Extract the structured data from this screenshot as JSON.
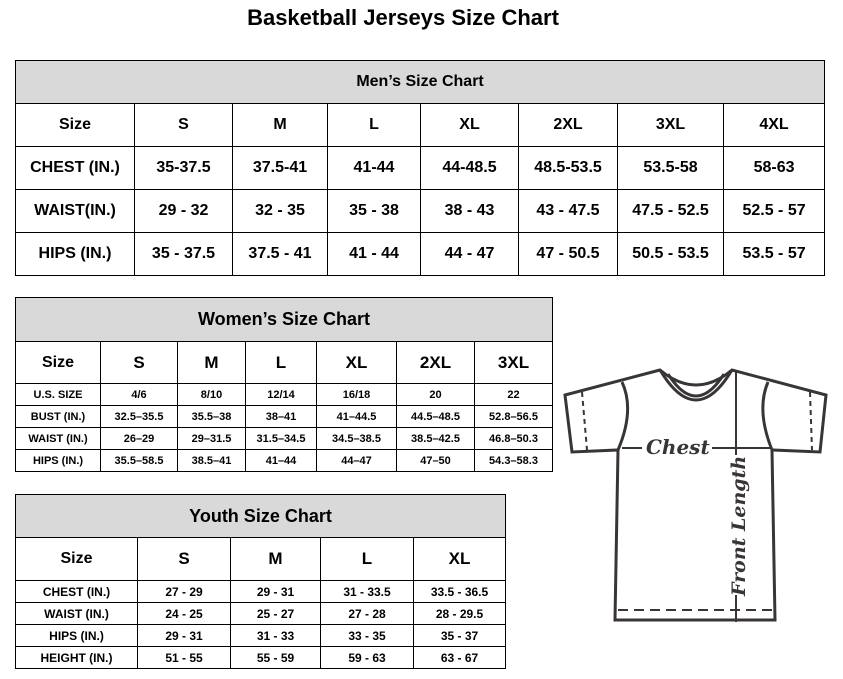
{
  "title": "Basketball Jerseys Size Chart",
  "men": {
    "title": "Men’s Size Chart",
    "header": [
      "Size",
      "S",
      "M",
      "L",
      "XL",
      "2XL",
      "3XL",
      "4XL"
    ],
    "rows": [
      [
        "CHEST (IN.)",
        "35-37.5",
        "37.5-41",
        "41-44",
        "44-48.5",
        "48.5-53.5",
        "53.5-58",
        "58-63"
      ],
      [
        "WAIST(IN.)",
        "29 - 32",
        "32 - 35",
        "35 - 38",
        "38 - 43",
        "43 - 47.5",
        "47.5 - 52.5",
        "52.5 - 57"
      ],
      [
        "HIPS (IN.)",
        "35 - 37.5",
        "37.5 - 41",
        "41 - 44",
        "44 - 47",
        "47 - 50.5",
        "50.5 - 53.5",
        "53.5 - 57"
      ]
    ]
  },
  "women": {
    "title": "Women’s Size Chart",
    "header": [
      "Size",
      "S",
      "M",
      "L",
      "XL",
      "2XL",
      "3XL"
    ],
    "rows": [
      [
        "U.S. SIZE",
        "4/6",
        "8/10",
        "12/14",
        "16/18",
        "20",
        "22"
      ],
      [
        "BUST (IN.)",
        "32.5–35.5",
        "35.5–38",
        "38–41",
        "41–44.5",
        "44.5–48.5",
        "52.8–56.5"
      ],
      [
        "WAIST (IN.)",
        "26–29",
        "29–31.5",
        "31.5–34.5",
        "34.5–38.5",
        "38.5–42.5",
        "46.8–50.3"
      ],
      [
        "HIPS (IN.)",
        "35.5–58.5",
        "38.5–41",
        "41–44",
        "44–47",
        "47–50",
        "54.3–58.3"
      ]
    ]
  },
  "youth": {
    "title": "Youth Size Chart",
    "header": [
      "Size",
      "S",
      "M",
      "L",
      "XL"
    ],
    "rows": [
      [
        "CHEST (IN.)",
        "27 - 29",
        "29 - 31",
        "31 - 33.5",
        "33.5 - 36.5"
      ],
      [
        "WAIST (IN.)",
        "24 - 25",
        "25 - 27",
        "27 - 28",
        "28 - 29.5"
      ],
      [
        "HIPS (IN.)",
        "29 - 31",
        "31 - 33",
        "33 - 35",
        "35 - 37"
      ],
      [
        "HEIGHT (IN.)",
        "51 - 55",
        "55 - 59",
        "59 - 63",
        "63 - 67"
      ]
    ]
  },
  "diagram": {
    "chest_label": "Chest",
    "length_label": "Front Length"
  },
  "colors": {
    "header_bg": "#d9d9d9",
    "shirt_stroke": "#3a3535"
  }
}
